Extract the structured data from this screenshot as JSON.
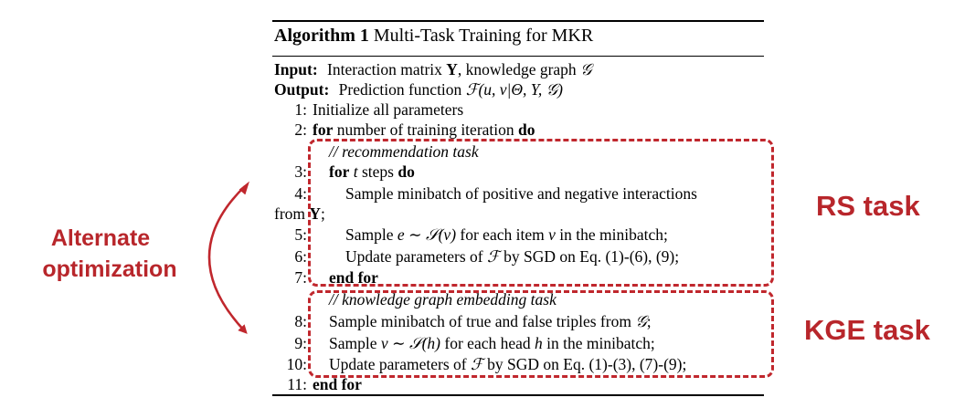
{
  "algorithm": {
    "title_label": "Algorithm 1",
    "title_text": "Multi-Task Training for MKR",
    "input_label": "Input:",
    "input_text_1": "Interaction matrix ",
    "input_Y": "Y",
    "input_text_2": ", knowledge graph ",
    "input_G": "𝒢",
    "output_label": "Output:",
    "output_text": "Prediction function ",
    "output_func": "ℱ(u, v|Θ, Y, 𝒢)",
    "lines": [
      {
        "num": "1:",
        "text": "Initialize all parameters"
      },
      {
        "num": "2:",
        "kw1": "for",
        "text": " number of training iteration ",
        "kw2": "do"
      },
      {
        "comment": "// recommendation task"
      },
      {
        "num": "3:",
        "kw1": "for",
        "math": " t",
        "text": " steps ",
        "kw2": "do"
      },
      {
        "num": "4:",
        "text": "Sample minibatch of positive and negative interactions"
      },
      {
        "text_a": "from ",
        "Y": "Y",
        "text_b": ";"
      },
      {
        "num": "5:",
        "text_a": "Sample ",
        "math": "e ∼ 𝒮(v)",
        "text_b": " for each item ",
        "math2": "v",
        "text_c": " in the minibatch;"
      },
      {
        "num": "6:",
        "text_a": "Update parameters of ",
        "math": "ℱ",
        "text_b": " by SGD on Eq. (1)-(6), (9);"
      },
      {
        "num": "7:",
        "kw1": "end for"
      },
      {
        "comment": "// knowledge graph embedding task"
      },
      {
        "num": "8:",
        "text_a": "Sample minibatch of true and false triples from ",
        "math": "𝒢",
        "text_b": ";"
      },
      {
        "num": "9:",
        "text_a": "Sample ",
        "math": "v ∼ 𝒮(h)",
        "text_b": " for each head ",
        "math2": "h",
        "text_c": " in the minibatch;"
      },
      {
        "num": "10:",
        "text_a": "Update parameters of ",
        "math": "ℱ",
        "text_b": " by SGD on Eq. (1)-(3), (7)-(9);"
      },
      {
        "num": "11:",
        "kw1": "end for"
      }
    ]
  },
  "annotations": {
    "left_label_line1": "Alternate",
    "left_label_line2": "optimization",
    "rs_label": "RS task",
    "kge_label": "KGE task",
    "accent_color": "#c0272d"
  }
}
